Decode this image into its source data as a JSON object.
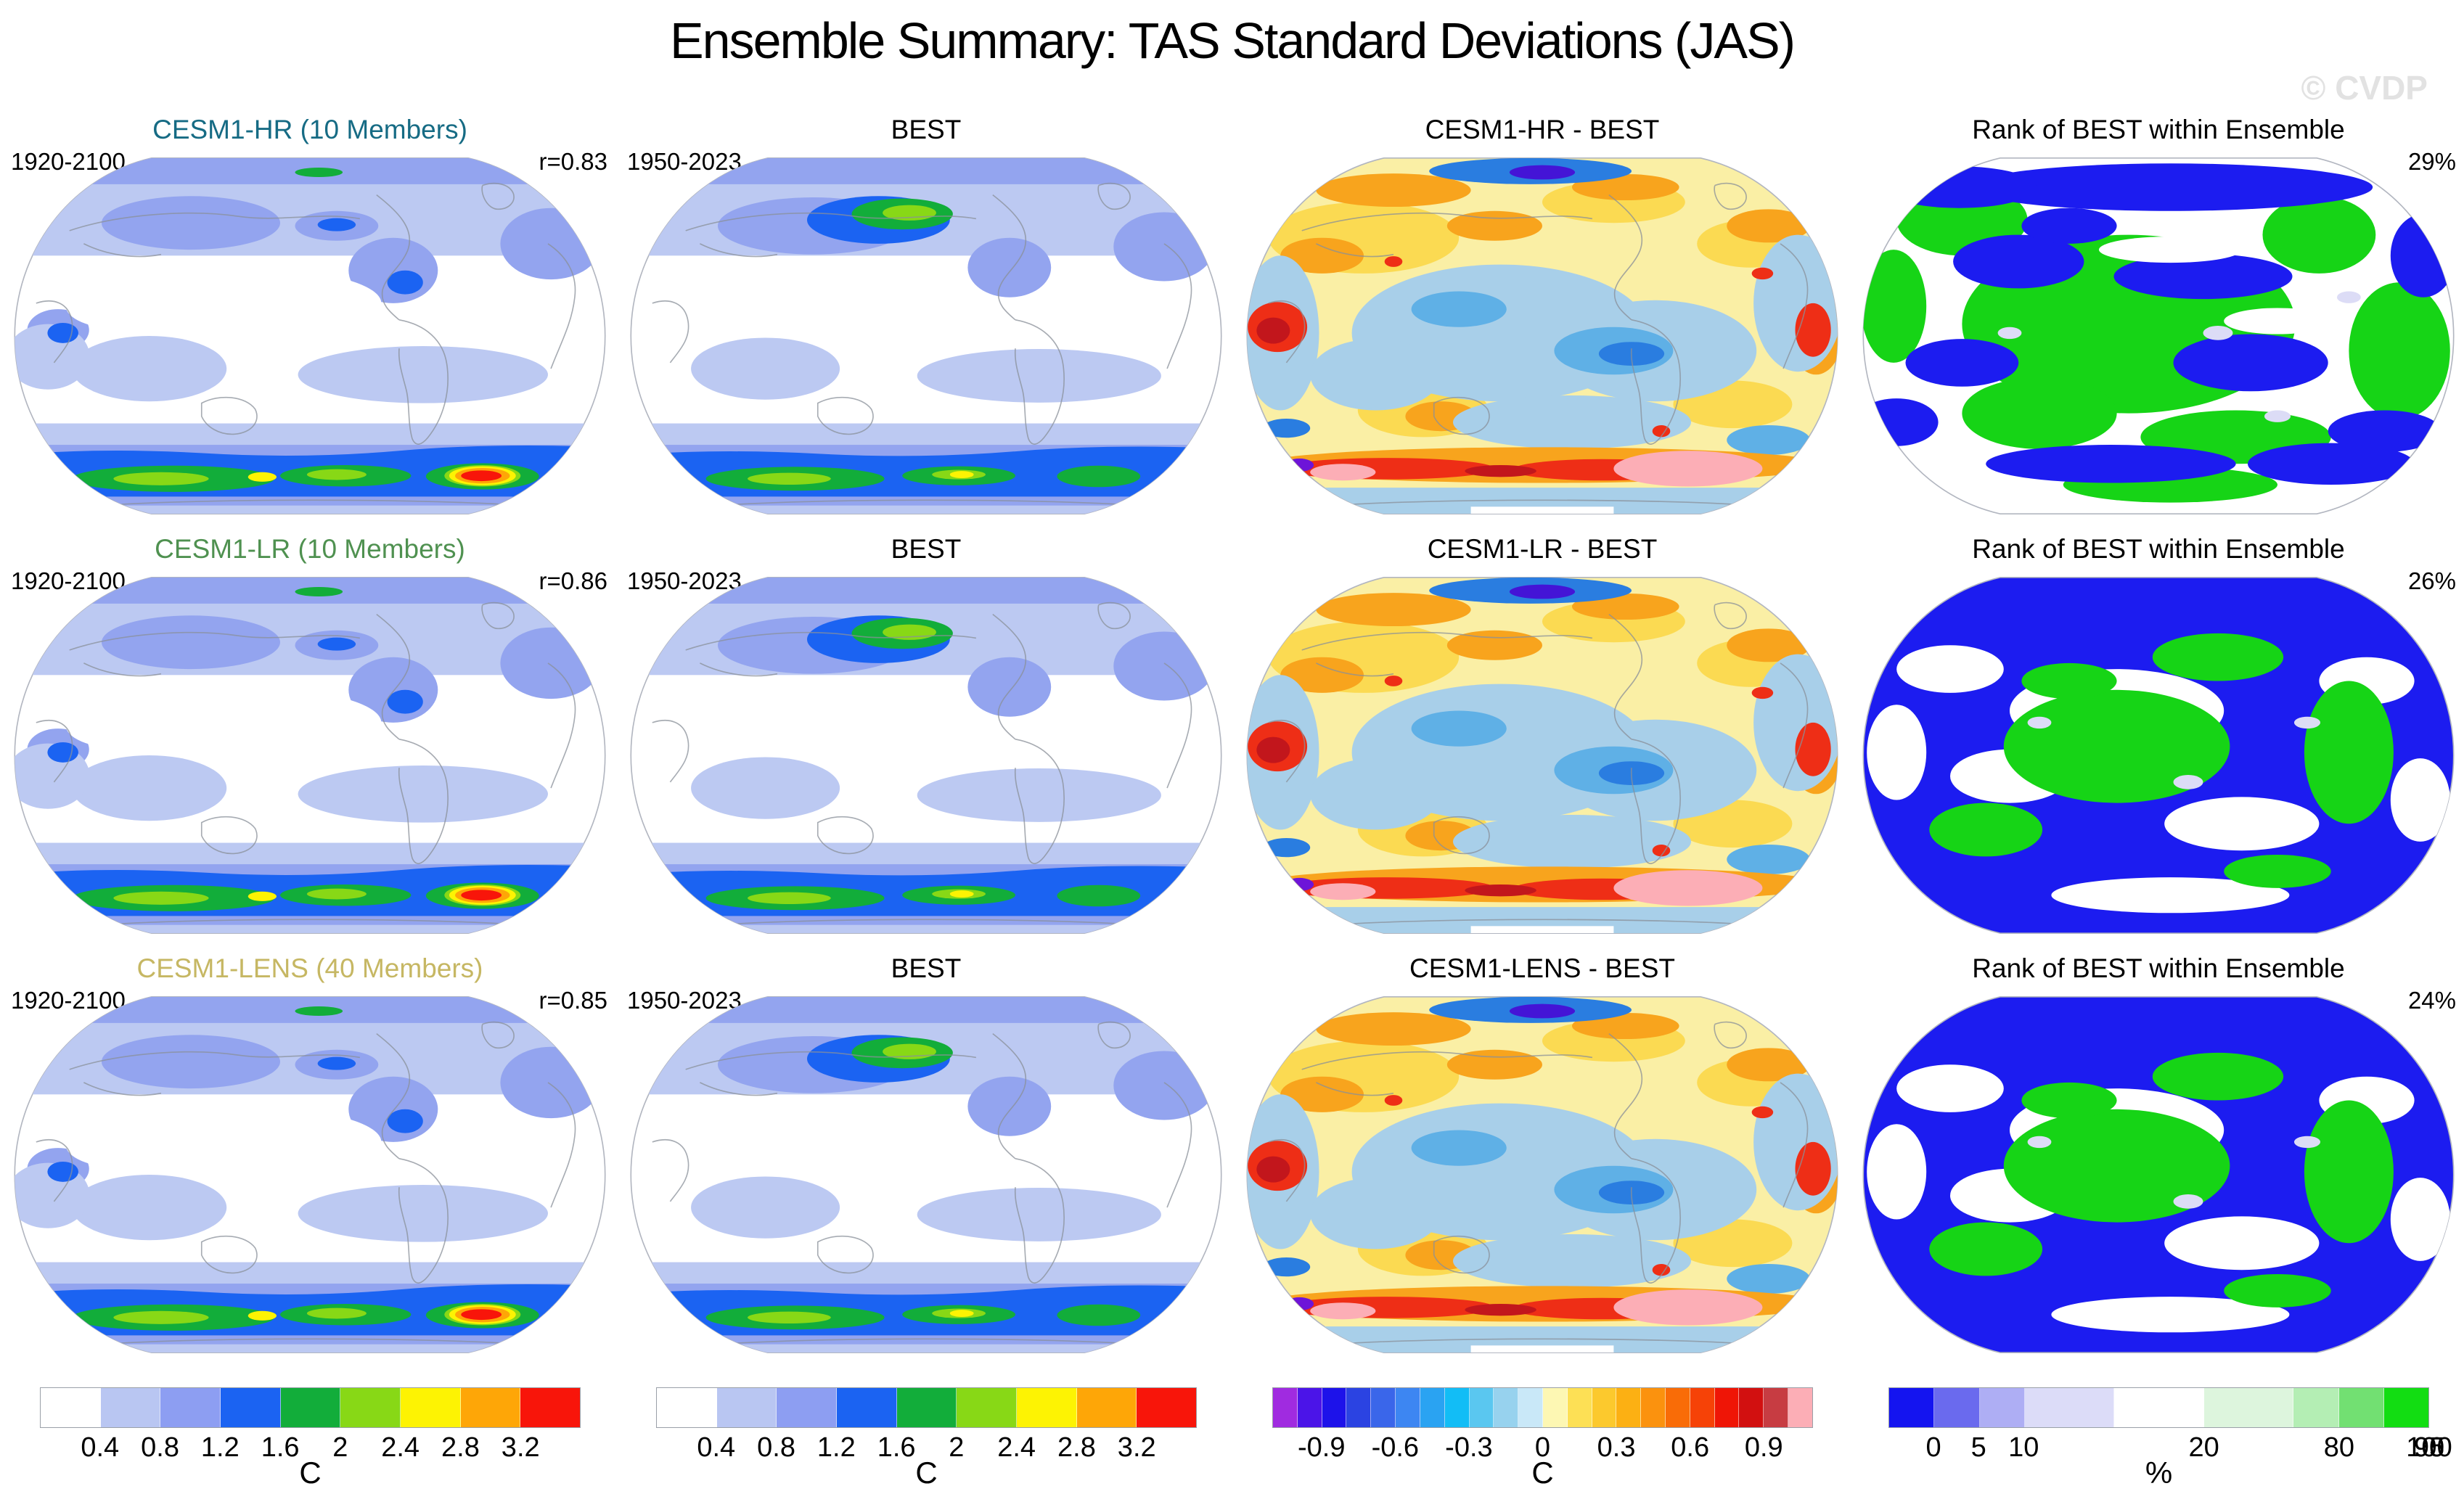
{
  "title": "Ensemble Summary: TAS Standard Deviations (JAS)",
  "watermark": "© CVDP",
  "chart_data": {
    "type": "heatmap",
    "subtype": "global filled-contour map grid, 3 rows x 4 columns, Robinson projection",
    "variable": "TAS standard deviation",
    "season": "JAS",
    "rows": [
      {
        "model_title": "CESM1-HR (10 Members)",
        "model_title_color": "#166b84",
        "period": "1920-2100",
        "r_value": "r=0.83",
        "best_title": "BEST",
        "best_period": "1950-2023",
        "diff_title": "CESM1-HR - BEST",
        "rank_title": "Rank of BEST within Ensemble",
        "rank_value": "29%"
      },
      {
        "model_title": "CESM1-LR (10 Members)",
        "model_title_color": "#4f9150",
        "period": "1920-2100",
        "r_value": "r=0.86",
        "best_title": "BEST",
        "best_period": "1950-2023",
        "diff_title": "CESM1-LR - BEST",
        "rank_title": "Rank of BEST within Ensemble",
        "rank_value": "26%"
      },
      {
        "model_title": "CESM1-LENS (40 Members)",
        "model_title_color": "#c6b763",
        "period": "1920-2100",
        "r_value": "r=0.85",
        "best_title": "BEST",
        "best_period": "1950-2023",
        "diff_title": "CESM1-LENS - BEST",
        "rank_title": "Rank of BEST within Ensemble",
        "rank_value": "24%"
      }
    ],
    "colorbars": [
      {
        "unit": "C",
        "colors": [
          "#ffffff",
          "#b9c6f2",
          "#8d9ef2",
          "#1b63f2",
          "#12ad3a",
          "#88d816",
          "#fdf303",
          "#fea607",
          "#f8150a"
        ],
        "ticks": [
          {
            "label": "0.4",
            "boundary": 1
          },
          {
            "label": "0.8",
            "boundary": 2
          },
          {
            "label": "1.2",
            "boundary": 3
          },
          {
            "label": "1.6",
            "boundary": 4
          },
          {
            "label": "2",
            "boundary": 5
          },
          {
            "label": "2.4",
            "boundary": 6
          },
          {
            "label": "2.8",
            "boundary": 7
          },
          {
            "label": "3.2",
            "boundary": 8
          }
        ]
      },
      {
        "unit": "C",
        "colors": [
          "#ffffff",
          "#b9c6f2",
          "#8d9ef2",
          "#1b63f2",
          "#12ad3a",
          "#88d816",
          "#fdf303",
          "#fea607",
          "#f8150a"
        ],
        "ticks": [
          {
            "label": "0.4",
            "boundary": 1
          },
          {
            "label": "0.8",
            "boundary": 2
          },
          {
            "label": "1.2",
            "boundary": 3
          },
          {
            "label": "1.6",
            "boundary": 4
          },
          {
            "label": "2",
            "boundary": 5
          },
          {
            "label": "2.4",
            "boundary": 6
          },
          {
            "label": "2.8",
            "boundary": 7
          },
          {
            "label": "3.2",
            "boundary": 8
          }
        ]
      },
      {
        "unit": "C",
        "colors": [
          "#a02be0",
          "#4b14e8",
          "#1d12ea",
          "#2b43e2",
          "#3a66ea",
          "#3d86f2",
          "#2aa3f2",
          "#12bdf6",
          "#5ac7f0",
          "#97d2ee",
          "#c9e8f8",
          "#fdf7b3",
          "#fde055",
          "#fcc92d",
          "#fcb013",
          "#fb920e",
          "#f96c07",
          "#f64207",
          "#ef1506",
          "#d21010",
          "#c73c42",
          "#fcaeb6"
        ],
        "ticks": [
          {
            "label": "-0.9",
            "boundary": 2
          },
          {
            "label": "-0.6",
            "boundary": 5
          },
          {
            "label": "-0.3",
            "boundary": 8
          },
          {
            "label": "0",
            "boundary": 11
          },
          {
            "label": "0.3",
            "boundary": 14
          },
          {
            "label": "0.6",
            "boundary": 17
          },
          {
            "label": "0.9",
            "boundary": 20
          }
        ]
      },
      {
        "unit": "%",
        "colors": [
          "#1414f0",
          "#6a6aee",
          "#aeaef4",
          "#dcdcf8",
          "#ffffff",
          "#ddf5dd",
          "#b4eeb4",
          "#72e072",
          "#12dd12"
        ],
        "widths": [
          1,
          1,
          1,
          2,
          2,
          2,
          1,
          1,
          1
        ],
        "ticks": [
          {
            "label": "0",
            "boundary": 1
          },
          {
            "label": "5",
            "boundary": 2
          },
          {
            "label": "10",
            "boundary": 3
          },
          {
            "label": "20",
            "boundary": 5
          },
          {
            "label": "80",
            "boundary": 7
          },
          {
            "label": "90",
            "boundary": 9
          },
          {
            "label": "95",
            "boundary": 10
          },
          {
            "label": "100",
            "boundary": 11
          }
        ]
      }
    ],
    "map_palette": {
      "stddev": [
        "#ffffff",
        "#bcc9f2",
        "#93a4ef",
        "#1b63f2",
        "#12ad3a",
        "#88d816",
        "#fdf303",
        "#fea607",
        "#f8150a"
      ],
      "difference": [
        "#faefa5",
        "#fbda52",
        "#f8a41d",
        "#ee2e16",
        "#c2161c",
        "#fcaeb6",
        "#a8cfe9",
        "#5fb0e6",
        "#2a7de0",
        "#4414d6",
        "#6d14d8"
      ],
      "rank": [
        "#1c1cf0",
        "#16d416",
        "#ffffff",
        "#dcdcf6",
        "#b4eeb4"
      ]
    }
  }
}
